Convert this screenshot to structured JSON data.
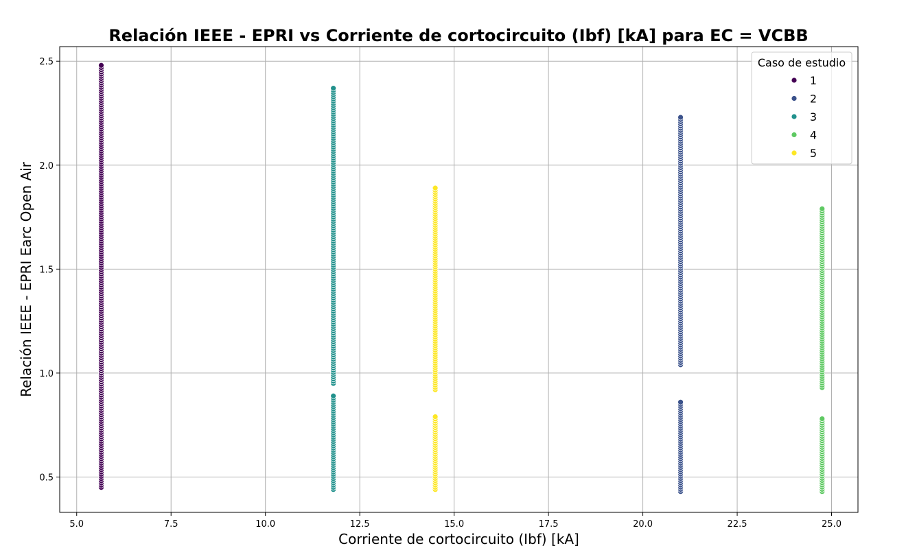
{
  "chart_data": {
    "type": "scatter",
    "title": "Relación IEEE - EPRI vs Corriente de cortocircuito (Ibf) [kA] para EC = VCBB",
    "xlabel": "Corriente de cortocircuito (Ibf) [kA]",
    "ylabel": "Relación IEEE - EPRI Earc Open Air",
    "xlim": [
      4.55,
      25.7
    ],
    "ylim": [
      0.33,
      2.57
    ],
    "x_ticks": [
      5.0,
      7.5,
      10.0,
      12.5,
      15.0,
      17.5,
      20.0,
      22.5,
      25.0
    ],
    "x_tick_labels": [
      "5.0",
      "7.5",
      "10.0",
      "12.5",
      "15.0",
      "17.5",
      "20.0",
      "22.5",
      "25.0"
    ],
    "y_ticks": [
      0.5,
      1.0,
      1.5,
      2.0,
      2.5
    ],
    "y_tick_labels": [
      "0.5",
      "1.0",
      "1.5",
      "2.0",
      "2.5"
    ],
    "grid": true,
    "legend": {
      "title": "Caso de estudio",
      "placement": "top-right"
    },
    "series": [
      {
        "name": "1",
        "color": "#440154",
        "x": 5.65,
        "y_ranges": [
          [
            0.45,
            2.48
          ]
        ]
      },
      {
        "name": "2",
        "color": "#3b528b",
        "x": 21.0,
        "y_ranges": [
          [
            0.43,
            0.86
          ],
          [
            1.04,
            2.23
          ]
        ]
      },
      {
        "name": "3",
        "color": "#21918c",
        "x": 11.8,
        "y_ranges": [
          [
            0.44,
            0.89
          ],
          [
            0.95,
            2.37
          ]
        ]
      },
      {
        "name": "4",
        "color": "#5ec962",
        "x": 24.75,
        "y_ranges": [
          [
            0.43,
            0.78
          ],
          [
            0.93,
            1.79
          ]
        ]
      },
      {
        "name": "5",
        "color": "#fde725",
        "x": 14.5,
        "y_ranges": [
          [
            0.44,
            0.79
          ],
          [
            0.92,
            1.89
          ]
        ]
      }
    ]
  }
}
